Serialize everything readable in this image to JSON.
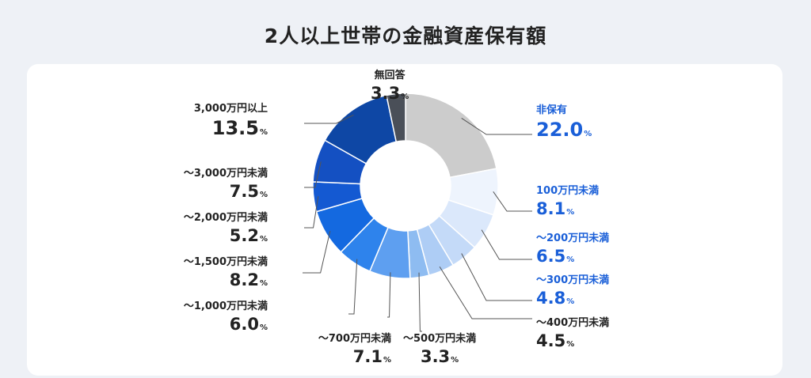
{
  "title": "2人以上世帯の金融資産保有額",
  "percent_sign": "%",
  "chart_data": {
    "type": "pie",
    "donut": true,
    "title": "2人以上世帯の金融資産保有額",
    "unit": "%",
    "slices": [
      {
        "label": "非保有",
        "value": 22.0,
        "display": "22.0",
        "color": "#cccccc"
      },
      {
        "label": "100万円未満",
        "value": 8.1,
        "display": "8.1",
        "color": "#eef4fd"
      },
      {
        "label": "〜200万円未満",
        "value": 6.5,
        "display": "6.5",
        "color": "#dbe8fb"
      },
      {
        "label": "〜300万円未満",
        "value": 4.8,
        "display": "4.8",
        "color": "#c4daf8"
      },
      {
        "label": "〜400万円未満",
        "value": 4.5,
        "display": "4.5",
        "color": "#aecdf5"
      },
      {
        "label": "〜500万円未満",
        "value": 3.3,
        "display": "3.3",
        "color": "#8ebcf1"
      },
      {
        "label": "〜700万円未満",
        "value": 7.1,
        "display": "7.1",
        "color": "#5e9ff0"
      },
      {
        "label": "〜1,000万円未満",
        "value": 6.0,
        "display": "6.0",
        "color": "#2e83ec"
      },
      {
        "label": "〜1,500万円未満",
        "value": 8.2,
        "display": "8.2",
        "color": "#1469e0"
      },
      {
        "label": "〜2,000万円未満",
        "value": 5.2,
        "display": "5.2",
        "color": "#1459d2"
      },
      {
        "label": "〜3,000万円未満",
        "value": 7.5,
        "display": "7.5",
        "color": "#1450c2"
      },
      {
        "label": "3,000万円以上",
        "value": 13.5,
        "display": "13.5",
        "color": "#0e47a5"
      },
      {
        "label": "無回答",
        "value": 3.3,
        "display": "3.3",
        "color": "#4a4f58"
      }
    ],
    "label_colors": {
      "highlight": "#1a5fd8",
      "normal": "#222222"
    }
  }
}
